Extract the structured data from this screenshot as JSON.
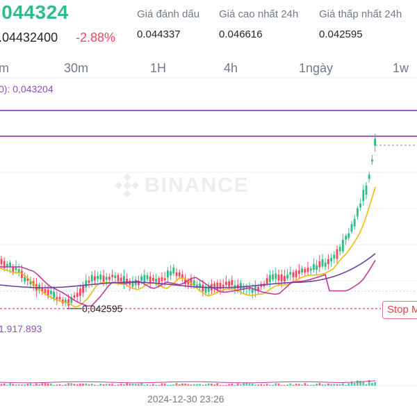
{
  "header": {
    "last_price": ".044324",
    "secondary_price": ".04432400",
    "change_percent": "-2.88%",
    "stats": [
      {
        "label": "Giá đánh dấu",
        "value": "0.044337"
      },
      {
        "label": "Giá cao nhất 24h",
        "value": "0.046616"
      },
      {
        "label": "Giá thấp nhất 24h",
        "value": "0.042595"
      }
    ]
  },
  "timeframes": [
    "m",
    "30m",
    "1H",
    "4h",
    "1ngày",
    "1w"
  ],
  "chart": {
    "ma_readout": "0): 0,043204",
    "low_marker": "0,042595",
    "stop_badge": "Stop M",
    "volume_readout": "1.917.893",
    "time_label": "2024-12-30 23:26",
    "watermark": "BINANCE"
  },
  "colors": {
    "up": "#2ebd85",
    "down": "#f6465d",
    "ma_fast": "#f0b90b",
    "ma_mid": "#c2399c",
    "ma_slow": "#6c3fa3",
    "level_line": "#9b59d0"
  }
}
